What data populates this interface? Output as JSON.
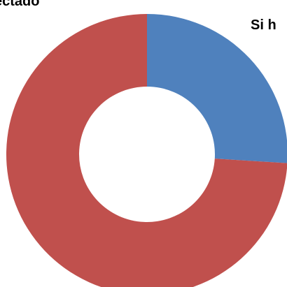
{
  "chart_data": {
    "type": "pie",
    "categories": [
      "Si h",
      "ectado"
    ],
    "values": [
      26,
      74
    ],
    "colors": [
      "#4f81bd",
      "#c0504d"
    ],
    "donut": true
  }
}
